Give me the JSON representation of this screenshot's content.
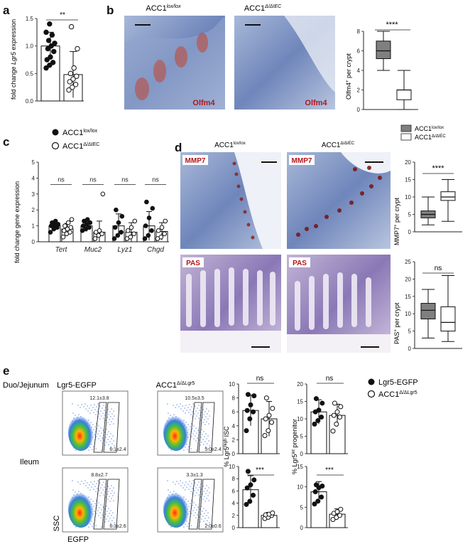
{
  "panels": {
    "a": {
      "letter": "a",
      "ylabel_prefix": "fold change ",
      "ylabel_gene": "Lgr5",
      "ylabel_suffix": " expression",
      "sig": "**",
      "yticks": [
        "0.0",
        "0.5",
        "1.0",
        "1.5"
      ]
    },
    "b": {
      "letter": "b",
      "img1_title_base": "ACC1",
      "img1_title_sup": "lox/lox",
      "img2_title_base": "ACC1",
      "img2_title_sup": "Δ/ΔIEC",
      "stain_label": "Olfm4",
      "box_ylabel_base": "Olfm4",
      "box_ylabel_sup": "+",
      "box_ylabel_suffix": " per crypt",
      "sig": "****",
      "yticks": [
        "0",
        "2",
        "4",
        "6",
        "8"
      ]
    },
    "c": {
      "letter": "c",
      "legend": [
        {
          "base": "ACC1",
          "sup": "lox/lox",
          "filled": true
        },
        {
          "base": "ACC1",
          "sup": "Δ/ΔIEC",
          "filled": false
        }
      ],
      "ylabel": "fold change gene  expression",
      "genes": [
        "Tert",
        "Muc2",
        "Lyz1",
        "Chgd"
      ],
      "sig": [
        "ns",
        "ns",
        "ns",
        "ns"
      ],
      "yticks": [
        "0",
        "1",
        "2",
        "3",
        "4",
        "5"
      ]
    },
    "d": {
      "letter": "d",
      "col1_title_base": "ACC1",
      "col1_title_sup": "lox/lox",
      "col2_title_base": "ACC1",
      "col2_title_sup": "Δ/ΔIEC",
      "stain_top": "MMP7",
      "stain_bottom": "PAS",
      "legend": [
        {
          "base": "ACC1",
          "sup": "lox/lox",
          "color": "#7f7f7f"
        },
        {
          "base": "ACC1",
          "sup": "Δ/ΔIEC",
          "color": "#ffffff"
        }
      ],
      "box1_ylabel_base": "MMP7",
      "box1_ylabel_sup": "+",
      "box1_ylabel_suffix": " per crypt",
      "box1_sig": "****",
      "box1_yticks": [
        "0",
        "5",
        "10",
        "15",
        "20"
      ],
      "box2_ylabel_base": "PAS",
      "box2_ylabel_sup": "+",
      "box2_ylabel_suffix": " per crypt",
      "box2_sig": "ns",
      "box2_yticks": [
        "0",
        "5",
        "10",
        "15",
        "20",
        "25"
      ]
    },
    "e": {
      "letter": "e",
      "row1_label": "Duo/Jejunum",
      "row2_label": "Ileum",
      "col1_title": "Lgr5-EGFP",
      "col2_title_base": "ACC1",
      "col2_title_sup": "Δ/ΔLgr5",
      "gates": [
        {
          "high": "12.1±3.8",
          "low": "6.1±2.4"
        },
        {
          "high": "10.5±3.5",
          "low": "5.0±2.4"
        },
        {
          "high": "8.8±2.7",
          "low": "6.3±2.6"
        },
        {
          "high": "3.3±1.3",
          "low": "2.0±0.6"
        }
      ],
      "xlabel": "EGFP",
      "ylabel": "SSC",
      "bar1_ylabel_pre": "% Lgr5",
      "bar1_ylabel_sup": "high",
      "bar1_ylabel_post": " ISC",
      "bar2_ylabel_pre": "% Lgr5",
      "bar2_ylabel_sup": "int",
      "bar2_ylabel_post": " progenitor",
      "bar1_top_sig": "ns",
      "bar1_bot_sig": "***",
      "bar2_top_sig": "ns",
      "bar2_bot_sig": "***",
      "bar1_top_yticks": [
        "0",
        "2",
        "4",
        "6",
        "8",
        "10"
      ],
      "bar1_bot_yticks": [
        "0",
        "2",
        "4",
        "6",
        "8",
        "10"
      ],
      "bar2_top_yticks": [
        "0",
        "5",
        "10",
        "15",
        "20"
      ],
      "bar2_bot_yticks": [
        "0",
        "5",
        "10",
        "15"
      ],
      "legend": [
        {
          "label": "Lgr5-EGFP",
          "sup": "",
          "filled": true
        },
        {
          "label": "ACC1",
          "sup": "Δ/ΔLgr5",
          "filled": false
        }
      ]
    }
  },
  "chart_data": [
    {
      "id": "a",
      "type": "bar",
      "categories": [
        "ACC1 lox/lox",
        "ACC1 Δ/ΔIEC"
      ],
      "values": [
        1.0,
        0.48
      ],
      "errors": [
        0.25,
        0.42
      ],
      "points": [
        [
          0.6,
          0.65,
          0.7,
          0.75,
          0.8,
          0.9,
          0.95,
          1.0,
          1.05,
          1.1,
          1.2,
          1.25,
          1.4
        ],
        [
          0.2,
          0.25,
          0.3,
          0.35,
          0.4,
          0.45,
          0.5,
          0.6,
          0.95,
          1.35
        ]
      ],
      "ylim": [
        0,
        1.5
      ]
    },
    {
      "id": "b",
      "type": "box",
      "groups": [
        "ACC1 lox/lox",
        "ACC1 Δ/ΔIEC"
      ],
      "boxes": [
        {
          "min": 4,
          "q1": 5.2,
          "median": 6,
          "q3": 7,
          "max": 8,
          "fill": "#7f7f7f"
        },
        {
          "min": 0,
          "q1": 1,
          "median": 2,
          "q3": 2,
          "max": 4,
          "fill": "#ffffff"
        }
      ],
      "ylim": [
        0,
        8
      ]
    },
    {
      "id": "c",
      "type": "bar",
      "categories": [
        "Tert",
        "Muc2",
        "Lyz1",
        "Chgd"
      ],
      "series": [
        {
          "name": "ACC1 lox/lox",
          "values": [
            1.0,
            1.0,
            1.0,
            1.0
          ],
          "errors": [
            0.2,
            0.35,
            0.75,
            0.9
          ],
          "points": [
            [
              0.6,
              0.8,
              0.9,
              1.0,
              1.05,
              1.1,
              1.2,
              1.3
            ],
            [
              0.7,
              0.8,
              0.9,
              1.0,
              1.1,
              1.2,
              1.3,
              1.4
            ],
            [
              0.2,
              0.4,
              0.6,
              0.9,
              1.2,
              1.6,
              2.0
            ],
            [
              0.2,
              0.4,
              0.7,
              1.0,
              1.5,
              2.1,
              2.5
            ]
          ]
        },
        {
          "name": "ACC1 Δ/ΔIEC",
          "values": [
            0.8,
            0.6,
            0.6,
            0.65
          ],
          "errors": [
            0.35,
            0.7,
            0.6,
            0.55
          ],
          "points": [
            [
              0.3,
              0.5,
              0.6,
              0.7,
              0.8,
              0.9,
              1.0,
              1.2,
              1.4
            ],
            [
              0.2,
              0.4,
              0.5,
              0.6,
              0.7,
              3.0
            ],
            [
              0.2,
              0.3,
              0.5,
              0.7,
              0.9,
              1.3
            ],
            [
              0.2,
              0.3,
              0.5,
              0.7,
              0.9,
              1.3
            ]
          ]
        }
      ],
      "ylim": [
        0,
        5
      ]
    },
    {
      "id": "d-mmp7",
      "type": "box",
      "groups": [
        "ACC1 lox/lox",
        "ACC1 Δ/ΔIEC"
      ],
      "boxes": [
        {
          "min": 2,
          "q1": 4,
          "median": 5,
          "q3": 6,
          "max": 10,
          "fill": "#7f7f7f"
        },
        {
          "min": 3,
          "q1": 9,
          "median": 10,
          "q3": 11.5,
          "max": 15,
          "fill": "#ffffff"
        }
      ],
      "ylim": [
        0,
        20
      ]
    },
    {
      "id": "d-pas",
      "type": "box",
      "groups": [
        "ACC1 lox/lox",
        "ACC1 Δ/ΔIEC"
      ],
      "boxes": [
        {
          "min": 3,
          "q1": 8.5,
          "median": 11,
          "q3": 13,
          "max": 17,
          "fill": "#7f7f7f"
        },
        {
          "min": 2,
          "q1": 5,
          "median": 7.5,
          "q3": 12,
          "max": 21,
          "fill": "#ffffff"
        }
      ],
      "ylim": [
        0,
        25
      ]
    },
    {
      "id": "e-isc-duo",
      "type": "bar",
      "categories": [
        "Lgr5-EGFP",
        "ACC1 Δ/ΔLgr5"
      ],
      "values": [
        6.2,
        5.0
      ],
      "errors": [
        2.2,
        2.5
      ],
      "points": [
        [
          3.3,
          5.0,
          6.0,
          6.2,
          7.0,
          8.3,
          8.5
        ],
        [
          2.6,
          3.3,
          4.5,
          5.0,
          5.5,
          6.5,
          8.0
        ]
      ],
      "ylim": [
        0,
        10
      ]
    },
    {
      "id": "e-isc-ileum",
      "type": "bar",
      "categories": [
        "Lgr5-EGFP",
        "ACC1 Δ/ΔLgr5"
      ],
      "values": [
        6.2,
        2.0
      ],
      "errors": [
        2.3,
        0.5
      ],
      "points": [
        [
          3.8,
          4.3,
          5.3,
          6.5,
          7.0,
          7.8,
          9.2
        ],
        [
          1.5,
          1.7,
          2.0,
          2.1,
          2.2,
          2.4
        ]
      ],
      "ylim": [
        0,
        10
      ]
    },
    {
      "id": "e-prog-duo",
      "type": "bar",
      "categories": [
        "Lgr5-EGFP",
        "ACC1 Δ/ΔLgr5"
      ],
      "values": [
        12.0,
        11.0
      ],
      "errors": [
        3.5,
        3.2
      ],
      "points": [
        [
          8.5,
          9.5,
          10.5,
          12.0,
          12.5,
          14.5,
          15.8
        ],
        [
          6.5,
          8.5,
          10.5,
          11.0,
          12.0,
          13.5,
          14.5
        ]
      ],
      "ylim": [
        0,
        20
      ]
    },
    {
      "id": "e-prog-ileum",
      "type": "bar",
      "categories": [
        "Lgr5-EGFP",
        "ACC1 Δ/ΔLgr5"
      ],
      "values": [
        8.8,
        3.3
      ],
      "errors": [
        2.5,
        1.3
      ],
      "points": [
        [
          5.8,
          6.5,
          7.5,
          8.8,
          9.8,
          10.2,
          10.5
        ],
        [
          2.0,
          2.5,
          3.0,
          3.5,
          3.9,
          4.5
        ]
      ],
      "ylim": [
        0,
        15
      ]
    }
  ]
}
